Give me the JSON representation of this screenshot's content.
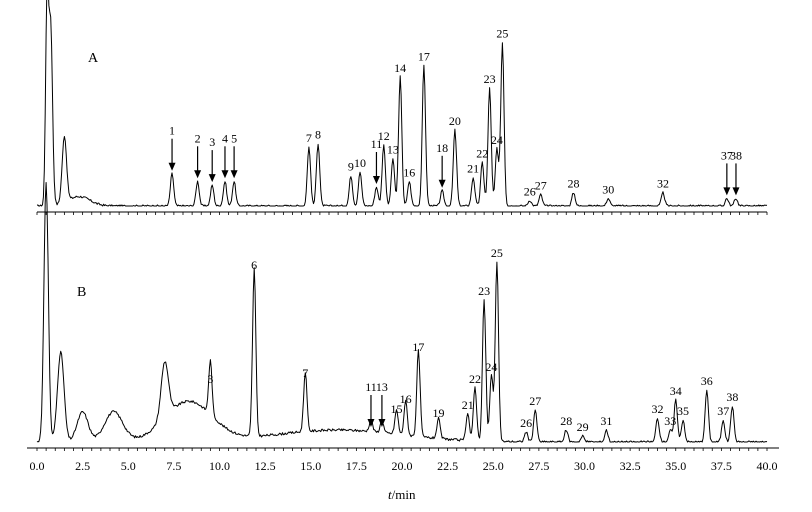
{
  "chart_data": {
    "type": "line",
    "title": "",
    "xlabel_italic": "t",
    "xlabel_unit": "/min",
    "xlim": [
      0,
      40
    ],
    "x_ticks": [
      "0.0",
      "2.5",
      "5.0",
      "7.5",
      "10.0",
      "12.5",
      "15.0",
      "17.5",
      "20.0",
      "22.5",
      "25.0",
      "27.5",
      "30.0",
      "32.5",
      "35.0",
      "37.5",
      "40.0"
    ],
    "panels": [
      {
        "name": "A",
        "peaks": [
          {
            "label": "1",
            "t": 7.4,
            "h": 0.17,
            "arrow": true
          },
          {
            "label": "2",
            "t": 8.8,
            "h": 0.13,
            "arrow": true
          },
          {
            "label": "3",
            "t": 9.6,
            "h": 0.11,
            "arrow": true
          },
          {
            "label": "4",
            "t": 10.3,
            "h": 0.13,
            "arrow": true
          },
          {
            "label": "5",
            "t": 10.8,
            "h": 0.13,
            "arrow": true
          },
          {
            "label": "7",
            "t": 14.9,
            "h": 0.31
          },
          {
            "label": "8",
            "t": 15.4,
            "h": 0.33
          },
          {
            "label": "9",
            "t": 17.2,
            "h": 0.16
          },
          {
            "label": "10",
            "t": 17.7,
            "h": 0.18
          },
          {
            "label": "11",
            "t": 18.6,
            "h": 0.1,
            "arrow": true
          },
          {
            "label": "12",
            "t": 19.0,
            "h": 0.32
          },
          {
            "label": "13",
            "t": 19.5,
            "h": 0.25
          },
          {
            "label": "14",
            "t": 19.9,
            "h": 0.68
          },
          {
            "label": "16",
            "t": 20.4,
            "h": 0.13
          },
          {
            "label": "17",
            "t": 21.2,
            "h": 0.74
          },
          {
            "label": "18",
            "t": 22.2,
            "h": 0.08,
            "arrow": true
          },
          {
            "label": "20",
            "t": 22.9,
            "h": 0.4
          },
          {
            "label": "21",
            "t": 23.9,
            "h": 0.15
          },
          {
            "label": "22",
            "t": 24.4,
            "h": 0.23
          },
          {
            "label": "23",
            "t": 24.8,
            "h": 0.62
          },
          {
            "label": "24",
            "t": 25.2,
            "h": 0.3
          },
          {
            "label": "25",
            "t": 25.5,
            "h": 0.86
          },
          {
            "label": "26",
            "t": 27.0,
            "h": 0.03
          },
          {
            "label": "27",
            "t": 27.6,
            "h": 0.06
          },
          {
            "label": "28",
            "t": 29.4,
            "h": 0.07
          },
          {
            "label": "30",
            "t": 31.3,
            "h": 0.04
          },
          {
            "label": "32",
            "t": 34.3,
            "h": 0.07
          },
          {
            "label": "37",
            "t": 37.8,
            "h": 0.04,
            "arrow": true
          },
          {
            "label": "38",
            "t": 38.3,
            "h": 0.04,
            "arrow": true
          }
        ]
      },
      {
        "name": "B",
        "peaks": [
          {
            "label": "3",
            "t": 9.5,
            "h": 0.27
          },
          {
            "label": "6",
            "t": 11.9,
            "h": 0.84
          },
          {
            "label": "7",
            "t": 14.7,
            "h": 0.3
          },
          {
            "label": "11",
            "t": 18.3,
            "h": 0.06,
            "arrow": true
          },
          {
            "label": "13",
            "t": 18.9,
            "h": 0.06,
            "arrow": true
          },
          {
            "label": "15",
            "t": 19.7,
            "h": 0.12
          },
          {
            "label": "16",
            "t": 20.2,
            "h": 0.17
          },
          {
            "label": "17",
            "t": 20.9,
            "h": 0.43
          },
          {
            "label": "19",
            "t": 22.0,
            "h": 0.1
          },
          {
            "label": "21",
            "t": 23.6,
            "h": 0.14
          },
          {
            "label": "22",
            "t": 24.0,
            "h": 0.27
          },
          {
            "label": "23",
            "t": 24.5,
            "h": 0.71
          },
          {
            "label": "24",
            "t": 24.9,
            "h": 0.33
          },
          {
            "label": "25",
            "t": 25.2,
            "h": 0.9
          },
          {
            "label": "26",
            "t": 26.8,
            "h": 0.05
          },
          {
            "label": "27",
            "t": 27.3,
            "h": 0.16
          },
          {
            "label": "28",
            "t": 29.0,
            "h": 0.06
          },
          {
            "label": "29",
            "t": 29.9,
            "h": 0.03
          },
          {
            "label": "31",
            "t": 31.2,
            "h": 0.06
          },
          {
            "label": "32",
            "t": 34.0,
            "h": 0.12
          },
          {
            "label": "33",
            "t": 34.7,
            "h": 0.06
          },
          {
            "label": "34",
            "t": 35.0,
            "h": 0.21
          },
          {
            "label": "35",
            "t": 35.4,
            "h": 0.11
          },
          {
            "label": "36",
            "t": 36.7,
            "h": 0.26
          },
          {
            "label": "37",
            "t": 37.6,
            "h": 0.11
          },
          {
            "label": "38",
            "t": 38.1,
            "h": 0.18
          }
        ]
      }
    ]
  }
}
